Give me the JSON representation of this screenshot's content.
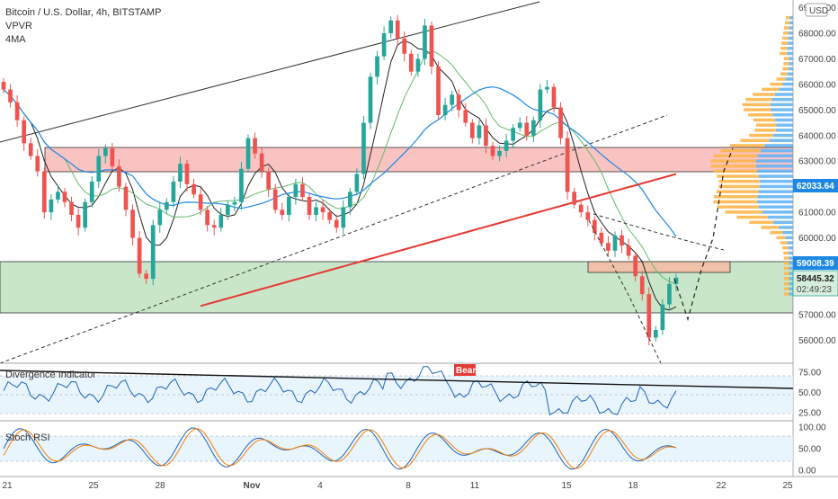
{
  "header": {
    "title": "Bitcoin / U.S. Dollar, 4h, BITSTAMP",
    "indicator_1": "VPVR",
    "indicator_2": "4MA",
    "currency": "USD"
  },
  "panels": {
    "divergence_label": "Divergence Indicator",
    "bear_label": "Bear",
    "stoch_label": "Stoch RSI"
  },
  "price_tags": {
    "ma_value": "62033.64",
    "level_value": "59008.39",
    "last_price": "58445.32",
    "countdown": "02:49:23"
  },
  "colors": {
    "up": "#26a69a",
    "down": "#ef5350",
    "resistance_zone": "#f7a9a8",
    "support_zone": "#a5d6a7",
    "ma_red": "#e53935",
    "ma_blue": "#1e88e5",
    "ma_green": "#66bb6a",
    "ma_black": "#222222",
    "vpvr_orange": "#ffb74d",
    "vpvr_blue": "#64b5f6"
  },
  "chart_data": [
    {
      "type": "candlestick",
      "symbol": "BTCUSD",
      "timeframe": "4h",
      "x_ticks": [
        "21",
        "25",
        "28",
        "Nov",
        "4",
        "8",
        "11",
        "15",
        "18",
        "22",
        "25"
      ],
      "y_ticks": [
        56000,
        57000,
        58000,
        59000,
        60000,
        61000,
        62000,
        63000,
        64000,
        65000,
        66000,
        67000,
        68000,
        69000
      ],
      "ylim": [
        55100,
        69300
      ],
      "closes": [
        65800,
        65300,
        64600,
        63700,
        63200,
        62600,
        61000,
        61500,
        61800,
        61400,
        60900,
        60400,
        61400,
        62200,
        63200,
        63500,
        62800,
        62000,
        61100,
        60000,
        58600,
        58400,
        60500,
        61100,
        61400,
        62200,
        62900,
        62100,
        61700,
        61100,
        60500,
        60400,
        60900,
        61300,
        61400,
        62700,
        63900,
        63300,
        62600,
        61900,
        61100,
        60900,
        61600,
        62100,
        61600,
        60900,
        61200,
        61000,
        60700,
        60400,
        61200,
        61800,
        62500,
        64500,
        66300,
        67100,
        68000,
        68500,
        67800,
        67200,
        66500,
        67000,
        68300,
        66700,
        64800,
        65200,
        65600,
        65000,
        64500,
        63900,
        64400,
        63600,
        63200,
        63400,
        63800,
        64300,
        64500,
        64000,
        64600,
        65800,
        65900,
        65100,
        63900,
        61800,
        61300,
        61000,
        60700,
        60200,
        59800,
        59500,
        60100,
        59700,
        59300,
        58500,
        57800,
        56100,
        56400,
        57400,
        58200,
        58445
      ],
      "support_zone": [
        57000,
        59000
      ],
      "resistance_zone": [
        62700,
        63600
      ],
      "box_zone": [
        58800,
        59100
      ],
      "horizontal_levels": [
        62033.64,
        59008.39,
        58445.32
      ]
    },
    {
      "type": "line",
      "name": "Divergence Indicator",
      "y_ticks": [
        25,
        50,
        75
      ],
      "ylim": [
        15,
        85
      ]
    },
    {
      "type": "line",
      "name": "Stoch RSI",
      "y_ticks": [
        0,
        50,
        100
      ],
      "ylim": [
        -10,
        110
      ]
    }
  ]
}
